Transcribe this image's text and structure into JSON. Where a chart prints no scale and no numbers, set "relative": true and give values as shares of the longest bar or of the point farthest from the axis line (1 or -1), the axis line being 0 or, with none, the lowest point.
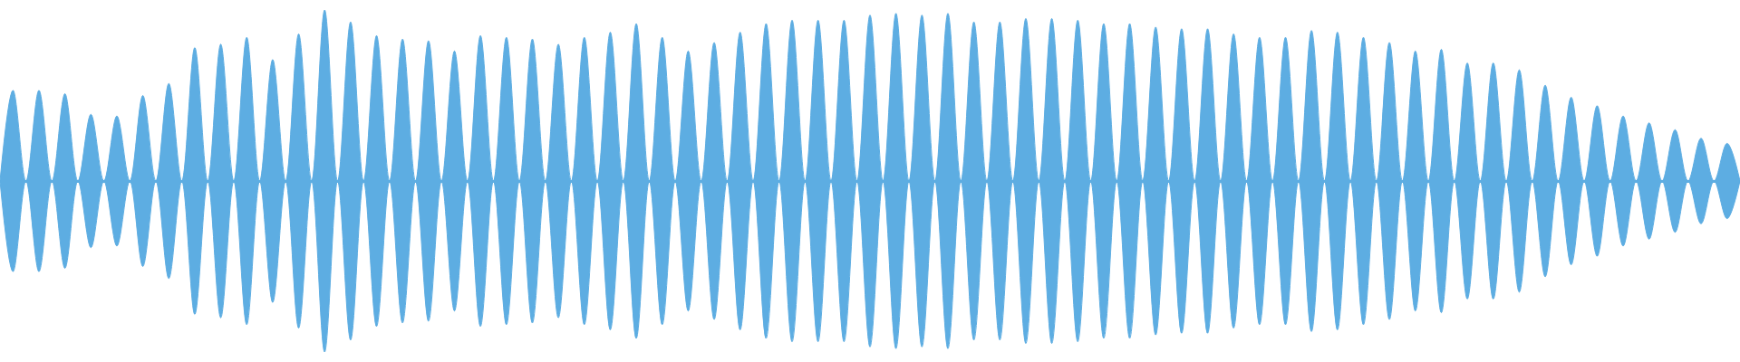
{
  "chart_data": {
    "type": "area",
    "relative": true,
    "categories": [
      null,
      null,
      null,
      null,
      null,
      null,
      null,
      null,
      null,
      null,
      null,
      null,
      null,
      null,
      null,
      null,
      null,
      null,
      null,
      null,
      null,
      null,
      null,
      null,
      null,
      null,
      null,
      null,
      null,
      null,
      null,
      null,
      null,
      null,
      null,
      null,
      null,
      null,
      null,
      null,
      null,
      null,
      null,
      null,
      null,
      null,
      null,
      null,
      null,
      null,
      null,
      null,
      null,
      null,
      null,
      null,
      null,
      null,
      null,
      null,
      null,
      null,
      null,
      null,
      null,
      null,
      null,
      null,
      null,
      null,
      null,
      null,
      null,
      null,
      null,
      null,
      null,
      null,
      null,
      null,
      null,
      null,
      null,
      null,
      null,
      null,
      null,
      null,
      null,
      null,
      null,
      null,
      null,
      null,
      null,
      null,
      null,
      null,
      null,
      null,
      null,
      null,
      null,
      null,
      null,
      null,
      null,
      null,
      null,
      null,
      null,
      null,
      null,
      null,
      null,
      null,
      null,
      null,
      null,
      null,
      null,
      null,
      null,
      null,
      null,
      null,
      null,
      null,
      null,
      null,
      null,
      null,
      null,
      null,
      null
    ],
    "series": [
      {
        "color": "#5dade2",
        "values": [
          0,
          0.53,
          0,
          0.53,
          0,
          0.51,
          0,
          0.39,
          0,
          0.38,
          0,
          0.5,
          0,
          0.57,
          0,
          0.78,
          0,
          0.8,
          0,
          0.84,
          0,
          0.71,
          0,
          0.86,
          0,
          1,
          0,
          0.93,
          0,
          0.85,
          0,
          0.83,
          0,
          0.82,
          0,
          0.76,
          0,
          0.85,
          0,
          0.84,
          0,
          0.83,
          0,
          0.8,
          0,
          0.84,
          0,
          0.87,
          0,
          0.92,
          0,
          0.84,
          0,
          0.76,
          0,
          0.81,
          0,
          0.87,
          0,
          0.92,
          0,
          0.94,
          0,
          0.94,
          0,
          0.94,
          0,
          0.97,
          0,
          0.98,
          0,
          0.97,
          0,
          0.98,
          0,
          0.93,
          0,
          0.93,
          0,
          0.95,
          0,
          0.95,
          0,
          0.94,
          0,
          0.92,
          0,
          0.92,
          0,
          0.9,
          0,
          0.89,
          0,
          0.89,
          0,
          0.86,
          0,
          0.84,
          0,
          0.84,
          0,
          0.88,
          0,
          0.87,
          0,
          0.84,
          0,
          0.81,
          0,
          0.76,
          0,
          0.77,
          0,
          0.69,
          0,
          0.69,
          0,
          0.65,
          0,
          0.56,
          0,
          0.49,
          0,
          0.44,
          0,
          0.38,
          0,
          0.34,
          0,
          0.3,
          0,
          0.25,
          0,
          0.22,
          0
        ]
      },
      {
        "color": "#5dade2",
        "values": [
          0,
          -0.53,
          0,
          -0.53,
          0,
          -0.51,
          0,
          -0.39,
          0,
          -0.38,
          0,
          -0.5,
          0,
          -0.57,
          0,
          -0.78,
          0,
          -0.8,
          0,
          -0.84,
          0,
          -0.71,
          0,
          -0.86,
          0,
          -1,
          0,
          -0.93,
          0,
          -0.85,
          0,
          -0.83,
          0,
          -0.82,
          0,
          -0.76,
          0,
          -0.85,
          0,
          -0.84,
          0,
          -0.83,
          0,
          -0.8,
          0,
          -0.84,
          0,
          -0.87,
          0,
          -0.92,
          0,
          -0.84,
          0,
          -0.76,
          0,
          -0.81,
          0,
          -0.87,
          0,
          -0.92,
          0,
          -0.94,
          0,
          -0.94,
          0,
          -0.94,
          0,
          -0.97,
          0,
          -0.98,
          0,
          -0.97,
          0,
          -0.98,
          0,
          -0.93,
          0,
          -0.93,
          0,
          -0.95,
          0,
          -0.95,
          0,
          -0.94,
          0,
          -0.92,
          0,
          -0.92,
          0,
          -0.9,
          0,
          -0.89,
          0,
          -0.89,
          0,
          -0.86,
          0,
          -0.84,
          0,
          -0.84,
          0,
          -0.88,
          0,
          -0.87,
          0,
          -0.84,
          0,
          -0.81,
          0,
          -0.76,
          0,
          -0.77,
          0,
          -0.69,
          0,
          -0.69,
          0,
          -0.65,
          0,
          -0.56,
          0,
          -0.49,
          0,
          -0.44,
          0,
          -0.38,
          0,
          -0.34,
          0,
          -0.3,
          0,
          -0.25,
          0,
          -0.22,
          0
        ]
      }
    ]
  }
}
